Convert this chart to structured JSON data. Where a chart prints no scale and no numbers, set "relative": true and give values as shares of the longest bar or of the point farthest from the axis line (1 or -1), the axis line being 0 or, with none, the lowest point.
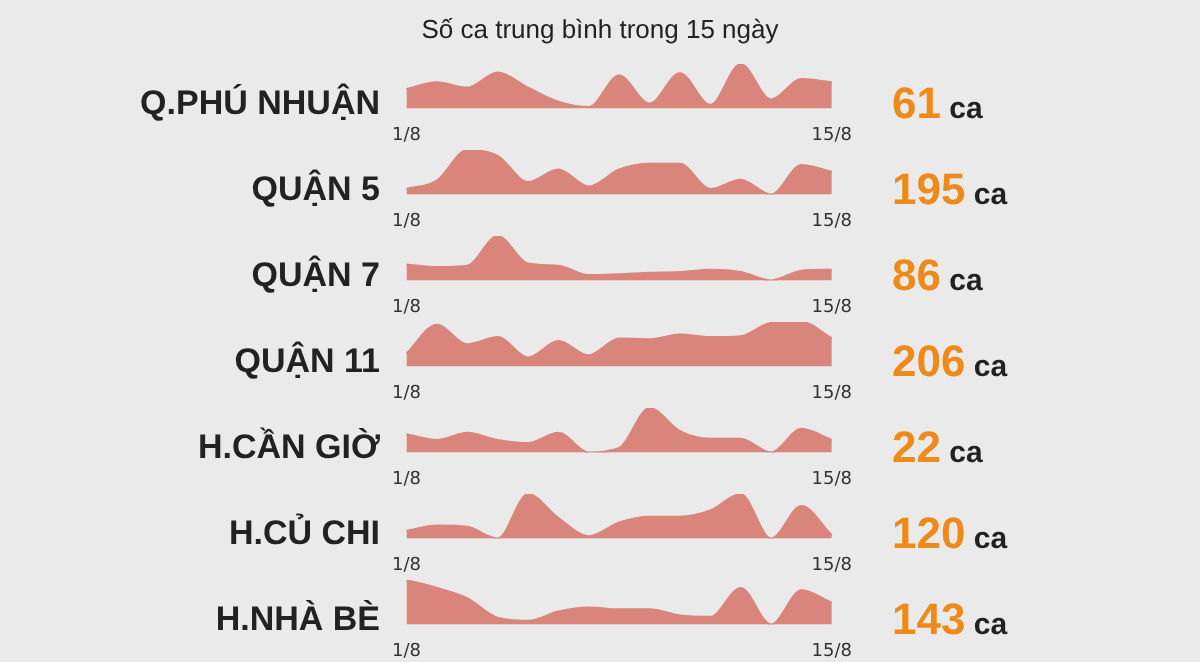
{
  "chart_data": [
    {
      "type": "area",
      "title": "Số ca trung bình trong 15 ngày",
      "ylabel": "Q.PHÚ NHUẬN",
      "annotations": [
        "61 ca"
      ],
      "relative": true,
      "color": "#d9857c",
      "categories": [
        "1/8",
        null,
        null,
        null,
        null,
        null,
        null,
        null,
        null,
        null,
        null,
        null,
        null,
        null,
        "15/8"
      ],
      "values": [
        0.44,
        0.59,
        0.47,
        0.81,
        0.47,
        0.15,
        0.03,
        0.74,
        0.11,
        0.79,
        0.08,
        1,
        0.2,
        0.66,
        0.59
      ]
    },
    {
      "type": "area",
      "ylabel": "QUẬN 5",
      "annotations": [
        "195 ca"
      ],
      "relative": true,
      "color": "#d9857c",
      "categories": [
        "1/8",
        null,
        null,
        null,
        null,
        null,
        null,
        null,
        null,
        null,
        null,
        null,
        null,
        null,
        "15/8"
      ],
      "values": [
        0.12,
        0.31,
        1,
        0.87,
        0.28,
        0.56,
        0.18,
        0.56,
        0.69,
        0.69,
        0.12,
        0.33,
        0,
        0.66,
        0.51
      ]
    },
    {
      "type": "area",
      "ylabel": "QUẬN 7",
      "annotations": [
        "86 ca"
      ],
      "relative": true,
      "color": "#d9857c",
      "categories": [
        "1/8",
        null,
        null,
        null,
        null,
        null,
        null,
        null,
        null,
        null,
        null,
        null,
        null,
        null,
        "15/8"
      ],
      "values": [
        0.36,
        0.3,
        0.33,
        1,
        0.38,
        0.33,
        0.12,
        0.14,
        0.17,
        0.19,
        0.24,
        0.19,
        0,
        0.22,
        0.24
      ]
    },
    {
      "type": "area",
      "ylabel": "QUẬN 11",
      "annotations": [
        "206 ca"
      ],
      "relative": true,
      "color": "#d9857c",
      "categories": [
        "1/8",
        null,
        null,
        null,
        null,
        null,
        null,
        null,
        null,
        null,
        null,
        null,
        null,
        null,
        "15/8"
      ],
      "values": [
        0.29,
        0.94,
        0.5,
        0.66,
        0.2,
        0.57,
        0.25,
        0.63,
        0.61,
        0.72,
        0.66,
        0.68,
        0.98,
        1,
        0.64
      ]
    },
    {
      "type": "area",
      "ylabel": "H.CẦN GIỜ",
      "annotations": [
        "22 ca"
      ],
      "relative": true,
      "color": "#d9857c",
      "categories": [
        "1/8",
        null,
        null,
        null,
        null,
        null,
        null,
        null,
        null,
        null,
        null,
        null,
        null,
        null,
        "15/8"
      ],
      "values": [
        0.41,
        0.28,
        0.44,
        0.28,
        0.21,
        0.44,
        0,
        0.1,
        1,
        0.48,
        0.31,
        0.31,
        0,
        0.53,
        0.28
      ]
    },
    {
      "type": "area",
      "ylabel": "H.CỦ CHI",
      "annotations": [
        "120 ca"
      ],
      "relative": true,
      "color": "#d9857c",
      "categories": [
        "1/8",
        null,
        null,
        null,
        null,
        null,
        null,
        null,
        null,
        null,
        null,
        null,
        null,
        null,
        "15/8"
      ],
      "values": [
        0.17,
        0.29,
        0.26,
        0,
        1,
        0.46,
        0.05,
        0.36,
        0.49,
        0.49,
        0.63,
        1,
        0,
        0.73,
        0.07
      ]
    },
    {
      "type": "area",
      "ylabel": "H.NHÀ BÈ",
      "annotations": [
        "143 ca"
      ],
      "relative": true,
      "color": "#d9857c",
      "categories": [
        "1/8",
        null,
        null,
        null,
        null,
        null,
        null,
        null,
        null,
        null,
        null,
        null,
        null,
        null,
        "15/8"
      ],
      "values": [
        1,
        0.82,
        0.59,
        0.15,
        0.08,
        0.29,
        0.38,
        0.34,
        0.34,
        0.2,
        0.17,
        0.82,
        0,
        0.77,
        0.49
      ]
    }
  ]
}
